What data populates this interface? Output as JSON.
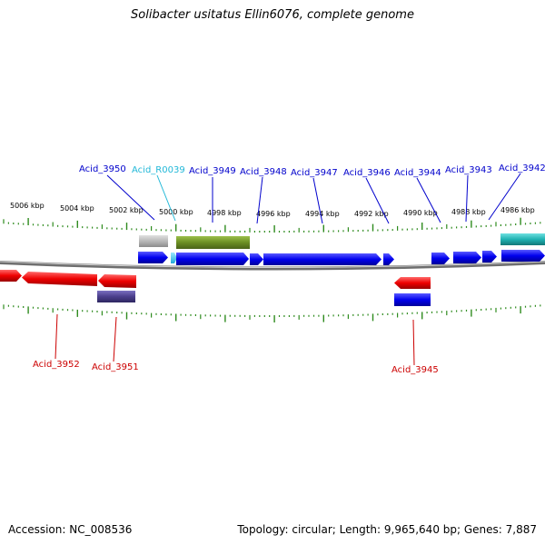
{
  "title": "Solibacter usitatus Ellin6076, complete genome",
  "footer": {
    "accession": "Accession: NC_008536",
    "summary": "Topology: circular; Length: 9,965,640 bp; Genes: 7,887"
  },
  "colors": {
    "backbone": "#8a8a8a",
    "tick": "#2e8b1e",
    "blue_gene": "#0000e6",
    "red_gene": "#ee0000",
    "pseudo_gray": "#b8b8b8",
    "olive_feature": "#6b8e23",
    "teal_feature": "#20b2b2",
    "purple_feature": "#4b3f8c",
    "label_blue": "#0000cc",
    "label_cyan": "#22b8d8",
    "label_red": "#cc0000"
  },
  "scale_labels": [
    "5006 kbp",
    "5004 kbp",
    "5002 kbp",
    "5000 kbp",
    "4998 kbp",
    "4996 kbp",
    "4994 kbp",
    "4992 kbp",
    "4990 kbp",
    "4988 kbp",
    "4986 kbp"
  ],
  "top_gene_labels": [
    {
      "name": "Acid_3950",
      "color": "label_blue"
    },
    {
      "name": "Acid_R0039",
      "color": "label_cyan"
    },
    {
      "name": "Acid_3949",
      "color": "label_blue"
    },
    {
      "name": "Acid_3948",
      "color": "label_blue"
    },
    {
      "name": "Acid_3947",
      "color": "label_blue"
    },
    {
      "name": "Acid_3946",
      "color": "label_blue"
    },
    {
      "name": "Acid_3944",
      "color": "label_blue"
    },
    {
      "name": "Acid_3943",
      "color": "label_blue"
    },
    {
      "name": "Acid_3942",
      "color": "label_blue"
    }
  ],
  "bottom_gene_labels": [
    {
      "name": "Acid_3952",
      "color": "label_red"
    },
    {
      "name": "Acid_3951",
      "color": "label_red"
    },
    {
      "name": "Acid_3945",
      "color": "label_red"
    }
  ]
}
